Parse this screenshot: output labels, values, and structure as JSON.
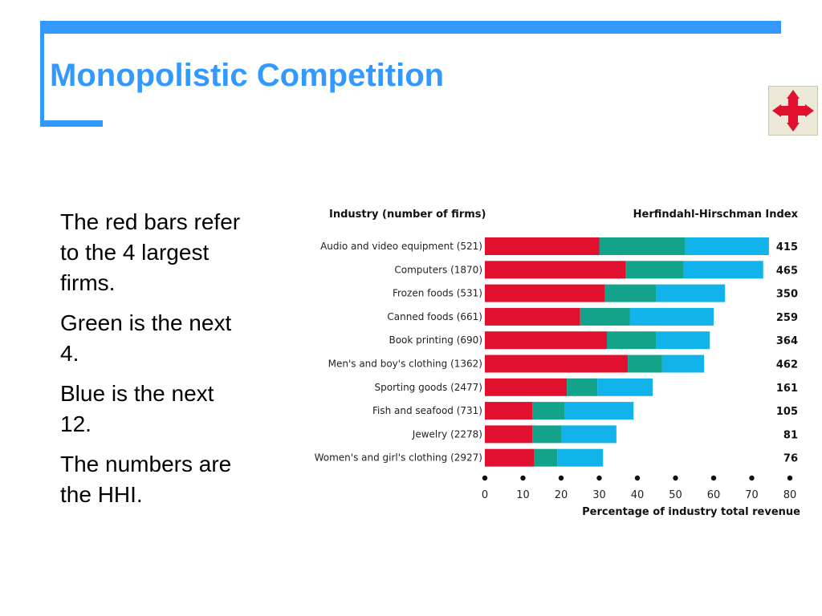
{
  "title": "Monopolistic Competition",
  "nav_icon": "four-way-arrow-icon",
  "body_lines": [
    "The red bars refer to the 4 largest firms.",
    "Green is the next 4.",
    "Blue is the next 12.",
    "The numbers are the HHI."
  ],
  "colors": {
    "accent": "#3399ff",
    "red": "#e0102e",
    "green": "#13a28a",
    "blue": "#11b3ea"
  },
  "chart_data": {
    "type": "bar",
    "orientation": "horizontal",
    "stacked": true,
    "left_header": "Industry (number of firms)",
    "right_header": "Herfindahl-Hirschman Index",
    "xlabel": "Percentage of industry total revenue",
    "xlim": [
      0,
      80
    ],
    "xticks": [
      0,
      10,
      20,
      30,
      40,
      50,
      60,
      70,
      80
    ],
    "categories": [
      "Audio and video equipment  (521)",
      "Computers  (1870)",
      "Frozen foods  (531)",
      "Canned foods  (661)",
      "Book printing  (690)",
      "Men's and boy's clothing  (1362)",
      "Sporting goods  (2477)",
      "Fish and seafood  (731)",
      "Jewelry  (2278)",
      "Women's and girl's clothing  (2927)"
    ],
    "series": [
      {
        "values": [
          30,
          37,
          31.5,
          25,
          32,
          37.5,
          21.5,
          12.5,
          12.5,
          13
        ]
      },
      {
        "values": [
          22.5,
          15,
          13.5,
          13,
          13,
          9,
          8,
          8.5,
          7.5,
          6
        ]
      },
      {
        "values": [
          22,
          21,
          18,
          22,
          14,
          11,
          14.5,
          18,
          14.5,
          12
        ]
      }
    ],
    "hhi": [
      "415",
      "465",
      "350",
      "259",
      "364",
      "462",
      "161",
      "105",
      "81",
      "76"
    ]
  }
}
